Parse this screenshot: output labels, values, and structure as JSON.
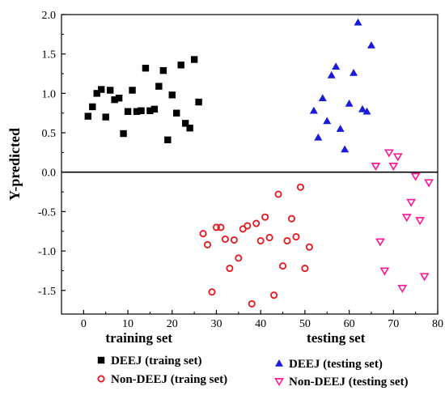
{
  "chart_data": {
    "type": "scatter",
    "title": "",
    "xlabel": "",
    "ylabel": "Y-predicted",
    "xlim": [
      -5,
      80
    ],
    "ylim": [
      -1.8,
      2.0
    ],
    "x_ticks": [
      "0",
      "10",
      "20",
      "30",
      "40",
      "50",
      "60",
      "70",
      "80"
    ],
    "y_ticks": [
      "-1.5",
      "-1.0",
      "-0.5",
      "0.0",
      "0.5",
      "1.0",
      "1.5",
      "2.0"
    ],
    "reference_line_y": 0,
    "bottom_labels": [
      "training set",
      "testing set"
    ],
    "grid": false,
    "legend_position": "bottom",
    "series": [
      {
        "name": "DEEJ (traing set)",
        "marker": "filled-square",
        "color": "#000000",
        "points": [
          [
            1,
            0.71
          ],
          [
            2,
            0.83
          ],
          [
            3,
            1.0
          ],
          [
            4,
            1.05
          ],
          [
            5,
            0.7
          ],
          [
            6,
            1.04
          ],
          [
            7,
            0.92
          ],
          [
            8,
            0.94
          ],
          [
            9,
            0.49
          ],
          [
            10,
            0.77
          ],
          [
            11,
            1.04
          ],
          [
            12,
            0.77
          ],
          [
            13,
            0.78
          ],
          [
            14,
            1.32
          ],
          [
            15,
            0.78
          ],
          [
            16,
            0.8
          ],
          [
            17,
            1.09
          ],
          [
            18,
            1.29
          ],
          [
            19,
            0.41
          ],
          [
            20,
            0.98
          ],
          [
            21,
            0.75
          ],
          [
            22,
            1.36
          ],
          [
            23,
            0.62
          ],
          [
            24,
            0.56
          ],
          [
            25,
            1.43
          ],
          [
            26,
            0.89
          ]
        ]
      },
      {
        "name": "Non-DEEJ (traing set)",
        "marker": "open-circle",
        "color": "#e8141b",
        "points": [
          [
            27,
            -0.78
          ],
          [
            28,
            -0.92
          ],
          [
            29,
            -1.52
          ],
          [
            30,
            -0.7
          ],
          [
            31,
            -0.7
          ],
          [
            32,
            -0.85
          ],
          [
            33,
            -1.22
          ],
          [
            34,
            -0.86
          ],
          [
            35,
            -1.09
          ],
          [
            36,
            -0.72
          ],
          [
            37,
            -0.68
          ],
          [
            38,
            -1.67
          ],
          [
            39,
            -0.65
          ],
          [
            40,
            -0.87
          ],
          [
            41,
            -0.57
          ],
          [
            42,
            -0.83
          ],
          [
            43,
            -1.56
          ],
          [
            44,
            -0.28
          ],
          [
            45,
            -1.19
          ],
          [
            46,
            -0.87
          ],
          [
            47,
            -0.59
          ],
          [
            48,
            -0.82
          ],
          [
            49,
            -0.19
          ],
          [
            50,
            -1.22
          ],
          [
            51,
            -0.95
          ]
        ]
      },
      {
        "name": "DEEJ (testing set)",
        "marker": "filled-triangle-up",
        "color": "#1a1adc",
        "points": [
          [
            52,
            0.78
          ],
          [
            53,
            0.44
          ],
          [
            54,
            0.94
          ],
          [
            55,
            0.65
          ],
          [
            56,
            1.23
          ],
          [
            57,
            1.34
          ],
          [
            58,
            0.55
          ],
          [
            59,
            0.29
          ],
          [
            60,
            0.87
          ],
          [
            61,
            1.26
          ],
          [
            62,
            1.9
          ],
          [
            63,
            0.8
          ],
          [
            64,
            0.77
          ],
          [
            65,
            1.61
          ]
        ]
      },
      {
        "name": "Non-DEEJ (testing set)",
        "marker": "open-triangle-down",
        "color": "#ff1493",
        "points": [
          [
            66,
            0.08
          ],
          [
            67,
            -0.88
          ],
          [
            68,
            -1.25
          ],
          [
            69,
            0.25
          ],
          [
            70,
            0.08
          ],
          [
            71,
            0.2
          ],
          [
            72,
            -1.47
          ],
          [
            73,
            -0.57
          ],
          [
            74,
            -0.38
          ],
          [
            75,
            -0.05
          ],
          [
            76,
            -0.61
          ],
          [
            77,
            -1.32
          ],
          [
            78,
            -0.13
          ]
        ]
      }
    ]
  }
}
